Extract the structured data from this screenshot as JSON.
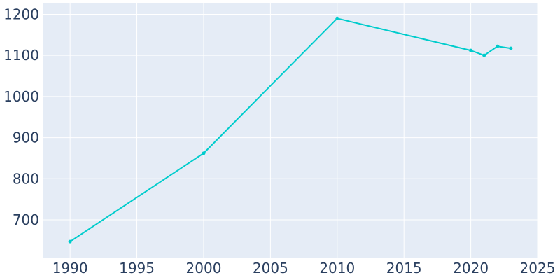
{
  "chart_data": {
    "type": "line",
    "title": "",
    "xlabel": "",
    "ylabel": "",
    "xlim": [
      1988,
      2025
    ],
    "ylim": [
      608,
      1228
    ],
    "x_ticks": [
      1990,
      1995,
      2000,
      2005,
      2010,
      2015,
      2020,
      2025
    ],
    "y_ticks": [
      700,
      800,
      900,
      1000,
      1100,
      1200
    ],
    "grid": true,
    "legend": "none",
    "colors": {
      "line": "#00cccc",
      "plot_bg": "#e5ecf6",
      "grid": "#ffffff",
      "tick_text": "#2a3f5f"
    },
    "series": [
      {
        "x": [
          1990,
          2000,
          2010,
          2020,
          2021,
          2022,
          2023
        ],
        "y": [
          647,
          862,
          1190,
          1112,
          1100,
          1122,
          1117
        ]
      }
    ]
  }
}
